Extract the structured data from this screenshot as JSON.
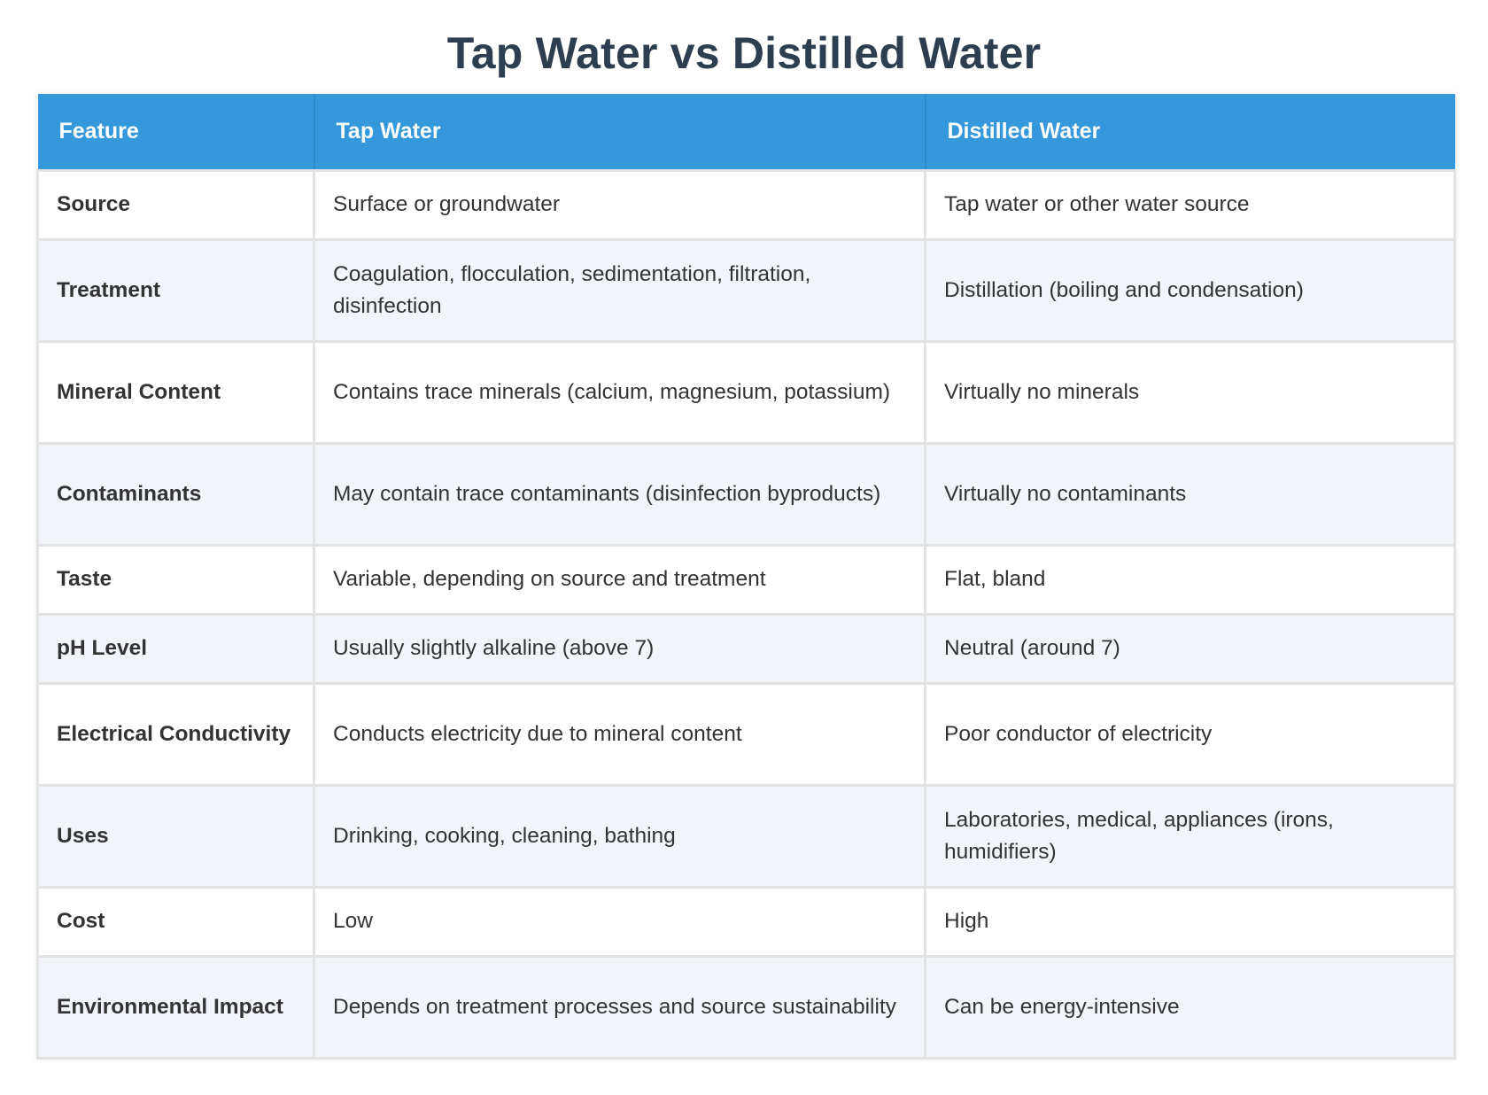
{
  "title": "Tap Water vs Distilled Water",
  "table": {
    "headers": [
      "Feature",
      "Tap Water",
      "Distilled Water"
    ],
    "rows": [
      {
        "feature": "Source",
        "tap": "Surface or groundwater",
        "distilled": "Tap water or other water source"
      },
      {
        "feature": "Treatment",
        "tap": "Coagulation, flocculation, sedimentation, filtration, disinfection",
        "distilled": "Distillation (boiling and condensation)"
      },
      {
        "feature": "Mineral Content",
        "tap": "Contains trace minerals (calcium, magnesium, potassium)",
        "distilled": "Virtually no minerals"
      },
      {
        "feature": "Contaminants",
        "tap": "May contain trace contaminants (disinfection byproducts)",
        "distilled": "Virtually no contaminants"
      },
      {
        "feature": "Taste",
        "tap": "Variable, depending on source and treatment",
        "distilled": "Flat, bland"
      },
      {
        "feature": "pH Level",
        "tap": "Usually slightly alkaline (above 7)",
        "distilled": "Neutral (around 7)"
      },
      {
        "feature": "Electrical Conductivity",
        "tap": "Conducts electricity due to mineral content",
        "distilled": "Poor conductor of electricity"
      },
      {
        "feature": "Uses",
        "tap": "Drinking, cooking, cleaning, bathing",
        "distilled": "Laboratories, medical, appliances (irons, humidifiers)"
      },
      {
        "feature": "Cost",
        "tap": "Low",
        "distilled": "High"
      },
      {
        "feature": "Environmental Impact",
        "tap": "Depends on treatment processes and source sustainability",
        "distilled": "Can be energy-intensive"
      }
    ]
  },
  "colors": {
    "header_background": "#3498db",
    "title_text": "#2c3e50",
    "alt_row_background": "#f1f4f9"
  }
}
